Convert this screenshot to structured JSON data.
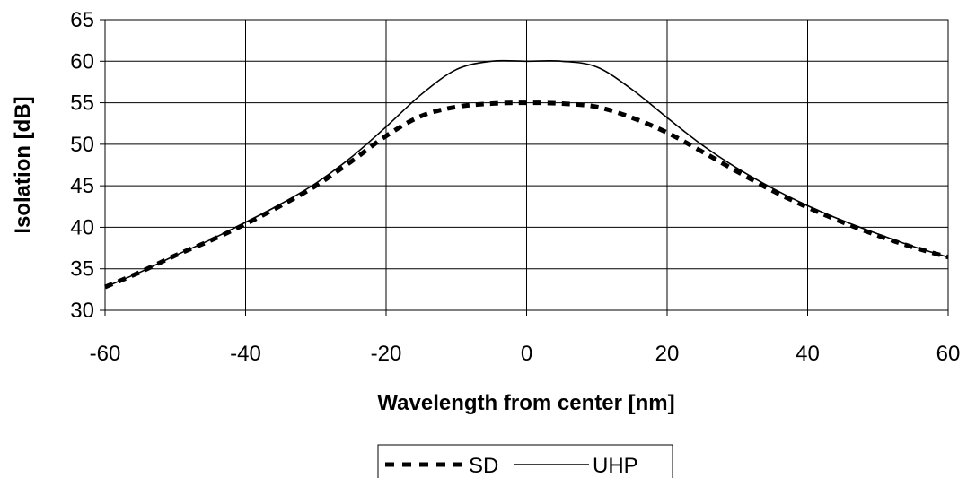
{
  "chart_data": {
    "type": "line",
    "title": "",
    "xlabel": "Wavelength from center [nm]",
    "ylabel": "Isolation [dB]",
    "xlim": [
      -60,
      60
    ],
    "ylim": [
      30,
      65
    ],
    "xticks": [
      "-60",
      "-40",
      "-20",
      "0",
      "20",
      "40",
      "60"
    ],
    "yticks": [
      "30",
      "35",
      "40",
      "45",
      "50",
      "55",
      "60",
      "65"
    ],
    "grid": true,
    "legend_position": "bottom-center",
    "series": [
      {
        "name": "SD",
        "style": "dashed",
        "color": "#000000",
        "x": [
          -60,
          -55,
          -50,
          -45,
          -40,
          -35,
          -30,
          -25,
          -20,
          -15,
          -10,
          -5,
          0,
          5,
          10,
          15,
          20,
          25,
          30,
          35,
          40,
          45,
          50,
          55,
          60
        ],
        "y": [
          32.8,
          34.6,
          36.6,
          38.4,
          40.4,
          42.6,
          45.0,
          47.9,
          51.0,
          53.4,
          54.5,
          54.9,
          55.0,
          54.9,
          54.5,
          53.2,
          51.4,
          49.1,
          46.7,
          44.4,
          42.4,
          40.6,
          39.0,
          37.6,
          36.4
        ]
      },
      {
        "name": "UHP",
        "style": "solid",
        "color": "#000000",
        "x": [
          -60,
          -55,
          -50,
          -45,
          -40,
          -35,
          -30,
          -25,
          -20,
          -15,
          -10,
          -5,
          0,
          5,
          10,
          15,
          20,
          25,
          30,
          35,
          40,
          45,
          50,
          55,
          60
        ],
        "y": [
          32.8,
          34.6,
          36.6,
          38.5,
          40.6,
          42.8,
          45.3,
          48.4,
          52.1,
          56.0,
          59.0,
          60.0,
          60.0,
          60.0,
          59.3,
          56.6,
          53.2,
          49.9,
          47.1,
          44.7,
          42.6,
          40.8,
          39.2,
          37.7,
          36.4
        ]
      }
    ]
  }
}
